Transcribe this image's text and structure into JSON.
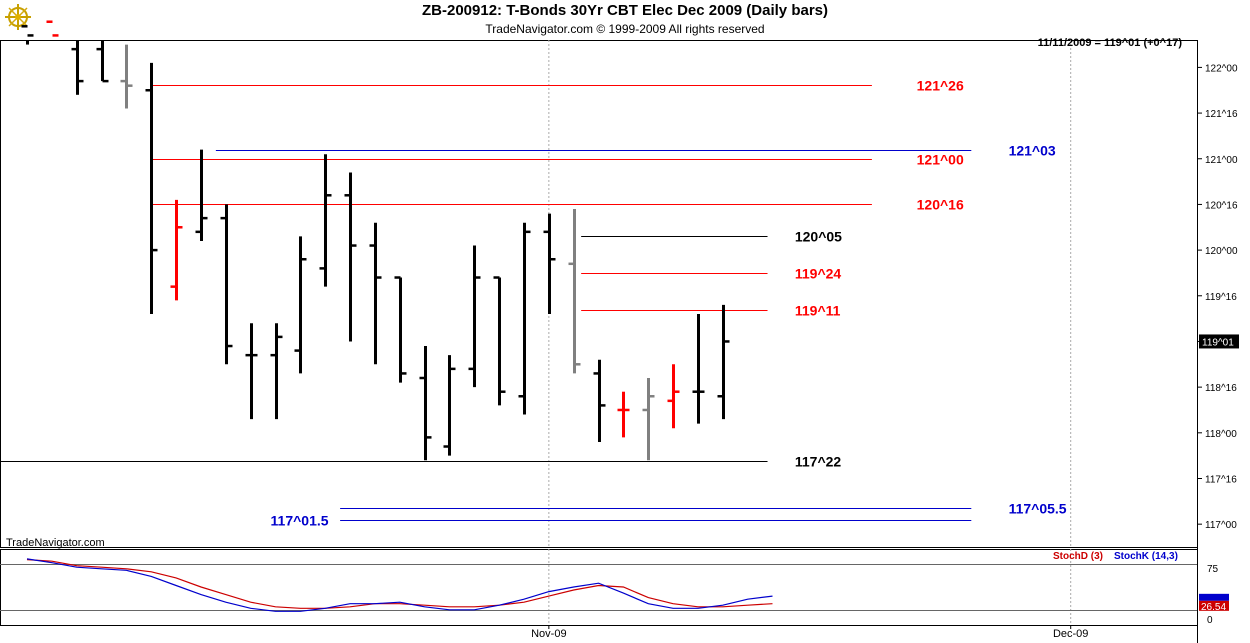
{
  "header": {
    "title": "ZB-200912:  T-Bonds 30Yr CBT Elec Dec 2009  (Daily bars)",
    "copyright": "TradeNavigator.com © 1999-2009 All rights reserved",
    "quote": "11/11/2009 = 119^01 (+0^17)",
    "watermark": "TradeNavigator.com",
    "logo": "trade-navigator-logo-icon"
  },
  "chart_data": [
    {
      "type": "ohlc",
      "title": "ZB-200912:  T-Bonds 30Yr CBT Elec Dec 2009  (Daily bars)",
      "y_unit": "points and 32nds",
      "ylim": [
        116.75,
        122.3
      ],
      "y_ticks": [
        {
          "v": 117.0,
          "label": "117^00"
        },
        {
          "v": 117.5,
          "label": "117^16"
        },
        {
          "v": 118.0,
          "label": "118^00"
        },
        {
          "v": 118.5,
          "label": "118^16"
        },
        {
          "v": 119.0,
          "label": "119^00"
        },
        {
          "v": 119.5,
          "label": "119^16"
        },
        {
          "v": 120.0,
          "label": "120^00"
        },
        {
          "v": 120.5,
          "label": "120^16"
        },
        {
          "v": 121.0,
          "label": "121^00"
        },
        {
          "v": 121.5,
          "label": "121^16"
        },
        {
          "v": 122.0,
          "label": "122^00"
        }
      ],
      "x_ticks": [
        {
          "i": 21,
          "label": "Nov-09"
        },
        {
          "i": 42,
          "label": "Dec-09"
        }
      ],
      "last_price_label": "119^01",
      "bars": [
        {
          "h": 122.55,
          "l": 122.25,
          "o": 122.45,
          "c": 122.35,
          "col": "#000000"
        },
        {
          "h": 122.65,
          "l": 122.3,
          "o": 122.5,
          "c": 122.35,
          "col": "#ff0000"
        },
        {
          "h": 122.5,
          "l": 121.7,
          "o": 122.2,
          "c": 121.85,
          "col": "#000000"
        },
        {
          "h": 122.4,
          "l": 121.85,
          "o": 122.2,
          "c": 121.85,
          "col": "#000000"
        },
        {
          "h": 122.25,
          "l": 121.55,
          "o": 121.85,
          "c": 121.8,
          "col": "#808080"
        },
        {
          "h": 122.05,
          "l": 119.3,
          "o": 121.75,
          "c": 120.0,
          "col": "#000000"
        },
        {
          "h": 120.55,
          "l": 119.45,
          "o": 119.6,
          "c": 120.25,
          "col": "#ff0000"
        },
        {
          "h": 121.1,
          "l": 120.1,
          "o": 120.2,
          "c": 120.35,
          "col": "#000000"
        },
        {
          "h": 120.5,
          "l": 118.75,
          "o": 120.35,
          "c": 118.95,
          "col": "#000000"
        },
        {
          "h": 119.2,
          "l": 118.15,
          "o": 118.85,
          "c": 118.85,
          "col": "#000000"
        },
        {
          "h": 119.2,
          "l": 118.15,
          "o": 118.85,
          "c": 119.05,
          "col": "#000000"
        },
        {
          "h": 120.15,
          "l": 118.65,
          "o": 118.9,
          "c": 119.9,
          "col": "#000000"
        },
        {
          "h": 121.05,
          "l": 119.6,
          "o": 119.8,
          "c": 120.6,
          "col": "#000000"
        },
        {
          "h": 120.85,
          "l": 119.0,
          "o": 120.6,
          "c": 120.05,
          "col": "#000000"
        },
        {
          "h": 120.3,
          "l": 118.75,
          "o": 120.05,
          "c": 119.7,
          "col": "#000000"
        },
        {
          "h": 119.7,
          "l": 118.55,
          "o": 119.7,
          "c": 118.65,
          "col": "#000000"
        },
        {
          "h": 118.95,
          "l": 117.7,
          "o": 118.6,
          "c": 117.95,
          "col": "#000000"
        },
        {
          "h": 118.85,
          "l": 117.75,
          "o": 117.85,
          "c": 118.7,
          "col": "#000000"
        },
        {
          "h": 120.05,
          "l": 118.5,
          "o": 118.7,
          "c": 119.7,
          "col": "#000000"
        },
        {
          "h": 119.7,
          "l": 118.3,
          "o": 119.7,
          "c": 118.45,
          "col": "#000000"
        },
        {
          "h": 120.3,
          "l": 118.2,
          "o": 118.4,
          "c": 120.2,
          "col": "#000000"
        },
        {
          "h": 120.4,
          "l": 119.3,
          "o": 120.2,
          "c": 119.9,
          "col": "#000000"
        },
        {
          "h": 120.45,
          "l": 118.65,
          "o": 119.85,
          "c": 118.75,
          "col": "#808080"
        },
        {
          "h": 118.8,
          "l": 117.9,
          "o": 118.65,
          "c": 118.3,
          "col": "#000000"
        },
        {
          "h": 118.45,
          "l": 117.95,
          "o": 118.25,
          "c": 118.25,
          "col": "#ff0000"
        },
        {
          "h": 118.6,
          "l": 117.7,
          "o": 118.25,
          "c": 118.4,
          "col": "#808080"
        },
        {
          "h": 118.75,
          "l": 118.05,
          "o": 118.35,
          "c": 118.45,
          "col": "#ff0000"
        },
        {
          "h": 119.3,
          "l": 118.1,
          "o": 118.45,
          "c": 118.45,
          "col": "#000000"
        },
        {
          "h": 119.4,
          "l": 118.15,
          "o": 118.4,
          "c": 119.0,
          "col": "#000000"
        }
      ],
      "levels": [
        {
          "v": 121.8125,
          "label": "121^26",
          "col": "#ff0000",
          "x0": 5,
          "x1": 34,
          "label_i": 35.8
        },
        {
          "v": 121.09375,
          "label": "121^03",
          "col": "#0000cc",
          "x0": 7.6,
          "x1": 38,
          "label_i": 39.5
        },
        {
          "v": 121.0,
          "label": "121^00",
          "col": "#ff0000",
          "x0": 5,
          "x1": 34,
          "label_i": 35.8
        },
        {
          "v": 120.5,
          "label": "120^16",
          "col": "#ff0000",
          "x0": 5,
          "x1": 34,
          "label_i": 35.8
        },
        {
          "v": 120.15625,
          "label": "120^05",
          "col": "#000000",
          "x0": 22.3,
          "x1": 29.8,
          "label_i": 30.9
        },
        {
          "v": 119.75,
          "label": "119^24",
          "col": "#ff0000",
          "x0": 22.3,
          "x1": 29.8,
          "label_i": 30.9
        },
        {
          "v": 119.34375,
          "label": "119^11",
          "col": "#ff0000",
          "x0": 22.3,
          "x1": 29.8,
          "label_i": 30.9
        },
        {
          "v": 117.6875,
          "label": "117^22",
          "col": "#000000",
          "x0": -4.8,
          "x1": 29.8,
          "label_i": 30.9
        },
        {
          "v": 117.171875,
          "label": "117^05.5",
          "col": "#0000cc",
          "x0": 12.6,
          "x1": 38,
          "label_i": 39.5
        },
        {
          "v": 117.046875,
          "label": "117^01.5",
          "col": "#0000cc",
          "x0": 12.6,
          "x1": 38,
          "label_i": 9.8
        }
      ]
    },
    {
      "type": "line",
      "title": "",
      "ylim": [
        0,
        100
      ],
      "y_ticks": [
        {
          "v": 75,
          "label": "75"
        },
        {
          "v": 0,
          "label": "0"
        }
      ],
      "ref_lines": [
        80,
        20
      ],
      "last_value_label": "26.54",
      "series": [
        {
          "name": "StochD (3)",
          "color": "#cc0000",
          "values": [
            86,
            84,
            78,
            76,
            74,
            70,
            62,
            50,
            40,
            30,
            24,
            22,
            22,
            24,
            28,
            28,
            26,
            24,
            24,
            26,
            30,
            38,
            46,
            52,
            50,
            36,
            28,
            24,
            24,
            26,
            28
          ]
        },
        {
          "name": "StochK (14,3)",
          "color": "#0000cc",
          "values": [
            87,
            82,
            76,
            74,
            72,
            64,
            52,
            40,
            30,
            22,
            18,
            18,
            22,
            28,
            28,
            30,
            24,
            20,
            20,
            26,
            34,
            44,
            50,
            55,
            42,
            28,
            22,
            22,
            26,
            34,
            38
          ]
        }
      ]
    }
  ]
}
